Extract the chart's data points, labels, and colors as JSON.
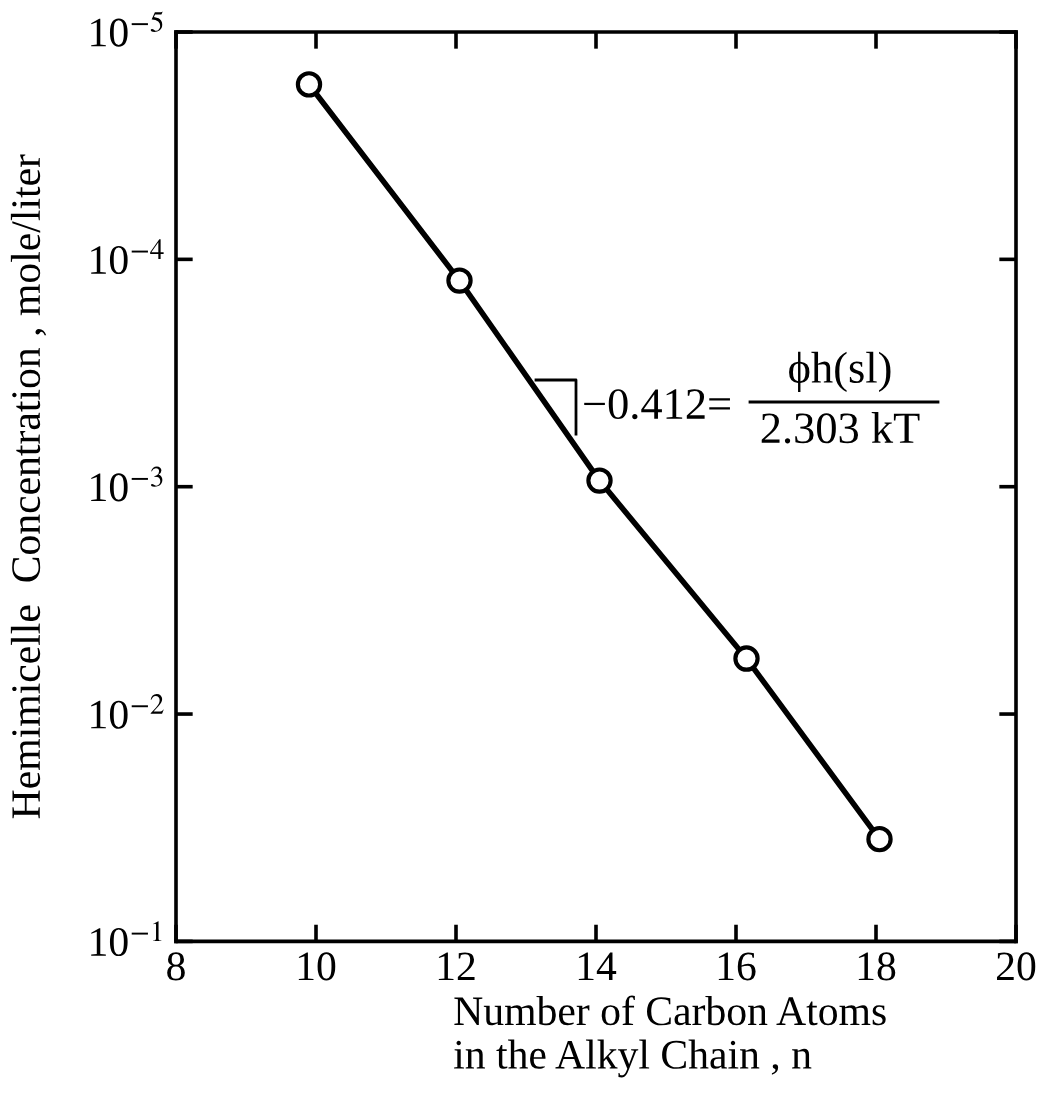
{
  "chart_data": {
    "type": "line",
    "xlabel": "Number of Carbon Atoms\nin the Alkyl Chain , n",
    "ylabel": "Hemimicelle  Concentration , mole/liter",
    "x": [
      9.9,
      12.05,
      14.05,
      16.15,
      18.05
    ],
    "series": [
      {
        "color": "#000000",
        "values": [
          1.7e-05,
          0.000124,
          0.00094,
          0.0057,
          0.0355
        ]
      }
    ],
    "marker": "circle",
    "line_style": "solid",
    "log": "y",
    "grid": false,
    "legend": false,
    "xlim": [
      8,
      20
    ],
    "xticks": [
      8,
      10,
      12,
      14,
      16,
      18,
      20
    ],
    "ylim": [
      0.1,
      1e-05
    ],
    "yticks": [
      {
        "value": 1e-05,
        "label": "10$^{−5}$"
      },
      {
        "value": 0.0001,
        "label": "10$^{−4}$"
      },
      {
        "value": 0.001,
        "label": "10$^{−3}$"
      },
      {
        "value": 0.01,
        "label": "10$^{−2}$"
      },
      {
        "value": 0.1,
        "label": "10$^{−1}$"
      }
    ],
    "annotations": [
      "−0.412=",
      "ϕh(sl)",
      "2.303 kT"
    ]
  }
}
